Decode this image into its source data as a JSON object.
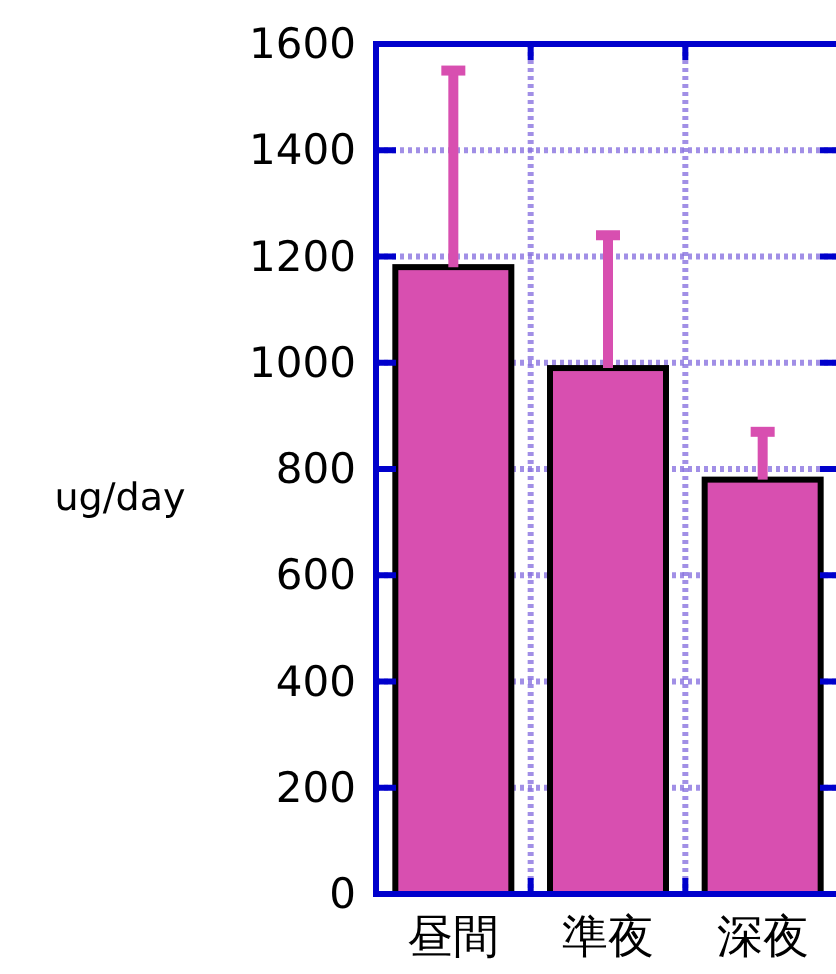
{
  "chart_data": {
    "type": "bar",
    "ylabel": "ug/day",
    "categories": [
      "昼間",
      "準夜",
      "深夜"
    ],
    "values": [
      1180,
      990,
      780
    ],
    "errors": [
      [
        1180,
        1550
      ],
      [
        990,
        1240
      ],
      [
        780,
        870
      ]
    ],
    "color": "#d84fb0",
    "ylim": [
      0,
      1600
    ],
    "yticks": [
      0,
      200,
      400,
      600,
      800,
      1000,
      1200,
      1400,
      1600
    ],
    "grid": true
  }
}
